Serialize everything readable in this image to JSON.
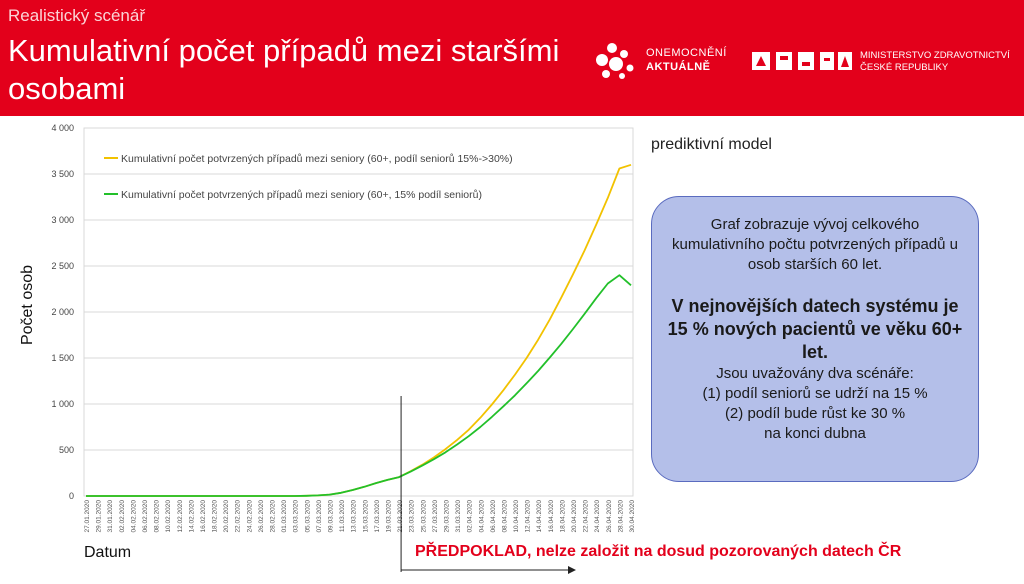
{
  "header": {
    "subtitle": "Realistický scénář",
    "title": "Kumulativní počet případů mezi staršími osobami",
    "logo1_line1": "ONEMOCNĚNÍ",
    "logo1_line2": "AKTUÁLNĚ",
    "logo2_line1": "MINISTERSTVO ZDRAVOTNICTVÍ",
    "logo2_line2": "ČESKÉ REPUBLIKY",
    "background_color": "#e3001b"
  },
  "predictive_label": "prediktivní model",
  "infobox": {
    "text1": "Graf zobrazuje vývoj celkového kumulativního počtu potvrzených případů u osob starších 60 let.",
    "text2": "V nejnovějších datech systému je 15 % nových pacientů ve věku 60+ let.",
    "text3_line1": "Jsou uvažovány dva scénáře:",
    "text3_line2": "(1) podíl seniorů se udrží na 15 %",
    "text3_line3": "(2) podíl bude růst ke 30 %",
    "text3_line4": "na konci dubna"
  },
  "xaxis_title": "Datum",
  "yaxis_title": "Počet osob",
  "warning_text": "PŘEDPOKLAD, nelze založit na dosud pozorovaných datech ČR",
  "chart_data": {
    "type": "line",
    "ylim": [
      0,
      4000
    ],
    "yticks": [
      0,
      500,
      1000,
      1500,
      2000,
      2500,
      3000,
      3500,
      4000
    ],
    "ytick_labels": [
      "0",
      "500",
      "1 000",
      "1 500",
      "2 000",
      "2 500",
      "3 000",
      "3 500",
      "4 000"
    ],
    "xtick_labels": [
      "27.01.2020",
      "29.01.2020",
      "31.01.2020",
      "02.02.2020",
      "04.02.2020",
      "06.02.2020",
      "08.02.2020",
      "10.02.2020",
      "12.02.2020",
      "14.02.2020",
      "16.02.2020",
      "18.02.2020",
      "20.02.2020",
      "22.02.2020",
      "24.02.2020",
      "26.02.2020",
      "28.02.2020",
      "01.03.2020",
      "03.03.2020",
      "05.03.2020",
      "07.03.2020",
      "09.03.2020",
      "11.03.2020",
      "13.03.2020",
      "15.03.2020",
      "17.03.2020",
      "19.03.2020",
      "21.03.2020",
      "23.03.2020",
      "25.03.2020",
      "27.03.2020",
      "29.03.2020",
      "31.03.2020",
      "02.04.2020",
      "04.04.2020",
      "06.04.2020",
      "08.04.2020",
      "10.04.2020",
      "12.04.2020",
      "14.04.2020",
      "16.04.2020",
      "18.04.2020",
      "20.04.2020",
      "22.04.2020",
      "24.04.2020",
      "26.04.2020",
      "28.04.2020",
      "30.04.2020"
    ],
    "forecast_start": "21.03.2020",
    "legend_position": "top-left",
    "grid": "horizontal",
    "series": [
      {
        "name": "Kumulativní počet potvrzených případů mezi seniory (60+, podíl seniorů 15%->30%)",
        "color": "#f2c200",
        "values": [
          0,
          0,
          0,
          0,
          0,
          0,
          0,
          0,
          0,
          0,
          0,
          0,
          0,
          0,
          0,
          0,
          0,
          0,
          0,
          2,
          6,
          15,
          35,
          65,
          100,
          140,
          175,
          205,
          270,
          340,
          420,
          510,
          610,
          720,
          850,
          995,
          1150,
          1320,
          1500,
          1700,
          1920,
          2160,
          2410,
          2670,
          2950,
          3240,
          3560,
          3600
        ]
      },
      {
        "name": "Kumulativní počet potvrzených případů mezi seniory (60+, 15% podíl seniorů)",
        "color": "#22c02a",
        "values": [
          0,
          0,
          0,
          0,
          0,
          0,
          0,
          0,
          0,
          0,
          0,
          0,
          0,
          0,
          0,
          0,
          0,
          0,
          0,
          2,
          6,
          15,
          35,
          65,
          100,
          140,
          175,
          205,
          265,
          330,
          400,
          475,
          560,
          650,
          750,
          860,
          975,
          1095,
          1225,
          1360,
          1505,
          1655,
          1815,
          1980,
          2150,
          2310,
          2400,
          2290
        ]
      }
    ]
  }
}
